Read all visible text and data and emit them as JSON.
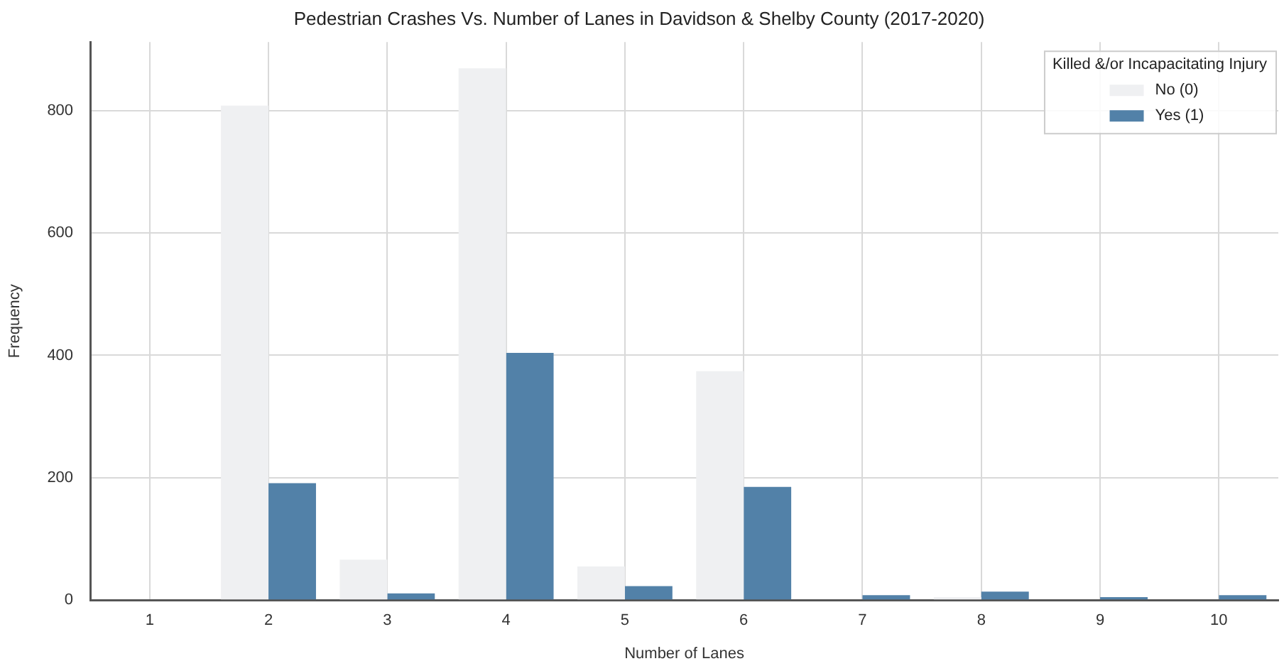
{
  "chart_data": {
    "type": "bar",
    "title": "Pedestrian Crashes Vs. Number of Lanes in Davidson & Shelby County (2017-2020)",
    "xlabel": "Number of Lanes",
    "ylabel": "Frequency",
    "legend_title": "Killed &/or Incapacitating Injury",
    "categories": [
      "1",
      "2",
      "3",
      "4",
      "5",
      "6",
      "7",
      "8",
      "9",
      "10"
    ],
    "series": [
      {
        "name": "No (0)",
        "color": "#eff0f2",
        "values": [
          0,
          808,
          66,
          869,
          55,
          374,
          0,
          5,
          0,
          null
        ]
      },
      {
        "name": "Yes (1)",
        "color": "#5281a8",
        "values": [
          0,
          191,
          11,
          404,
          23,
          185,
          8,
          14,
          5,
          8
        ]
      }
    ],
    "ylim": [
      0,
      912
    ],
    "yticks": [
      0,
      200,
      400,
      600,
      800
    ],
    "grid": true,
    "legend": "top right"
  }
}
